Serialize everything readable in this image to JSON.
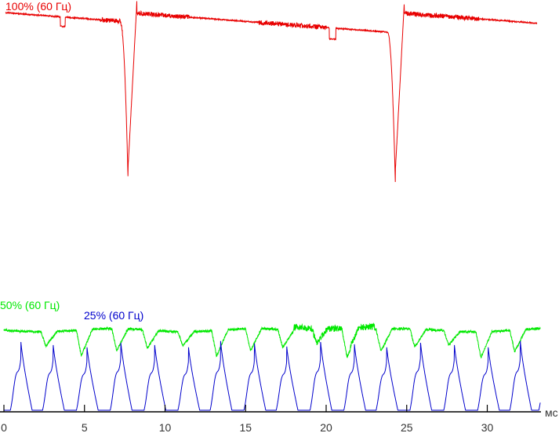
{
  "chart_data": {
    "type": "line",
    "xlabel": "мс",
    "xlim": [
      0,
      33.3
    ],
    "xticks": [
      0,
      5,
      10,
      15,
      20,
      25,
      30
    ],
    "grid": false,
    "series": [
      {
        "name": "100% (60 Гц)",
        "color": "#e80000",
        "pulse_period_ms": 16.7,
        "pulse_times_ms": [
          7.7,
          24.3
        ]
      },
      {
        "name": "50% (60 Гц)",
        "color": "#00e800",
        "pulse_period_ms": 2.08,
        "pulse_times_ms": [
          2.6,
          4.8,
          7.0,
          8.9,
          11.1,
          13.2,
          15.3,
          17.3,
          19.4,
          21.3,
          23.4,
          25.5,
          27.6,
          29.6,
          31.7
        ]
      },
      {
        "name": "25% (60 Гц)",
        "color": "#0000cc",
        "pulse_period_ms": 2.08,
        "pulse_times_ms": [
          0.5,
          2.5,
          4.6,
          6.7,
          8.8,
          10.9,
          12.9,
          15.0,
          17.0,
          19.1,
          21.2,
          23.2,
          25.3,
          27.4,
          29.5,
          31.5,
          33.3
        ]
      }
    ]
  }
}
